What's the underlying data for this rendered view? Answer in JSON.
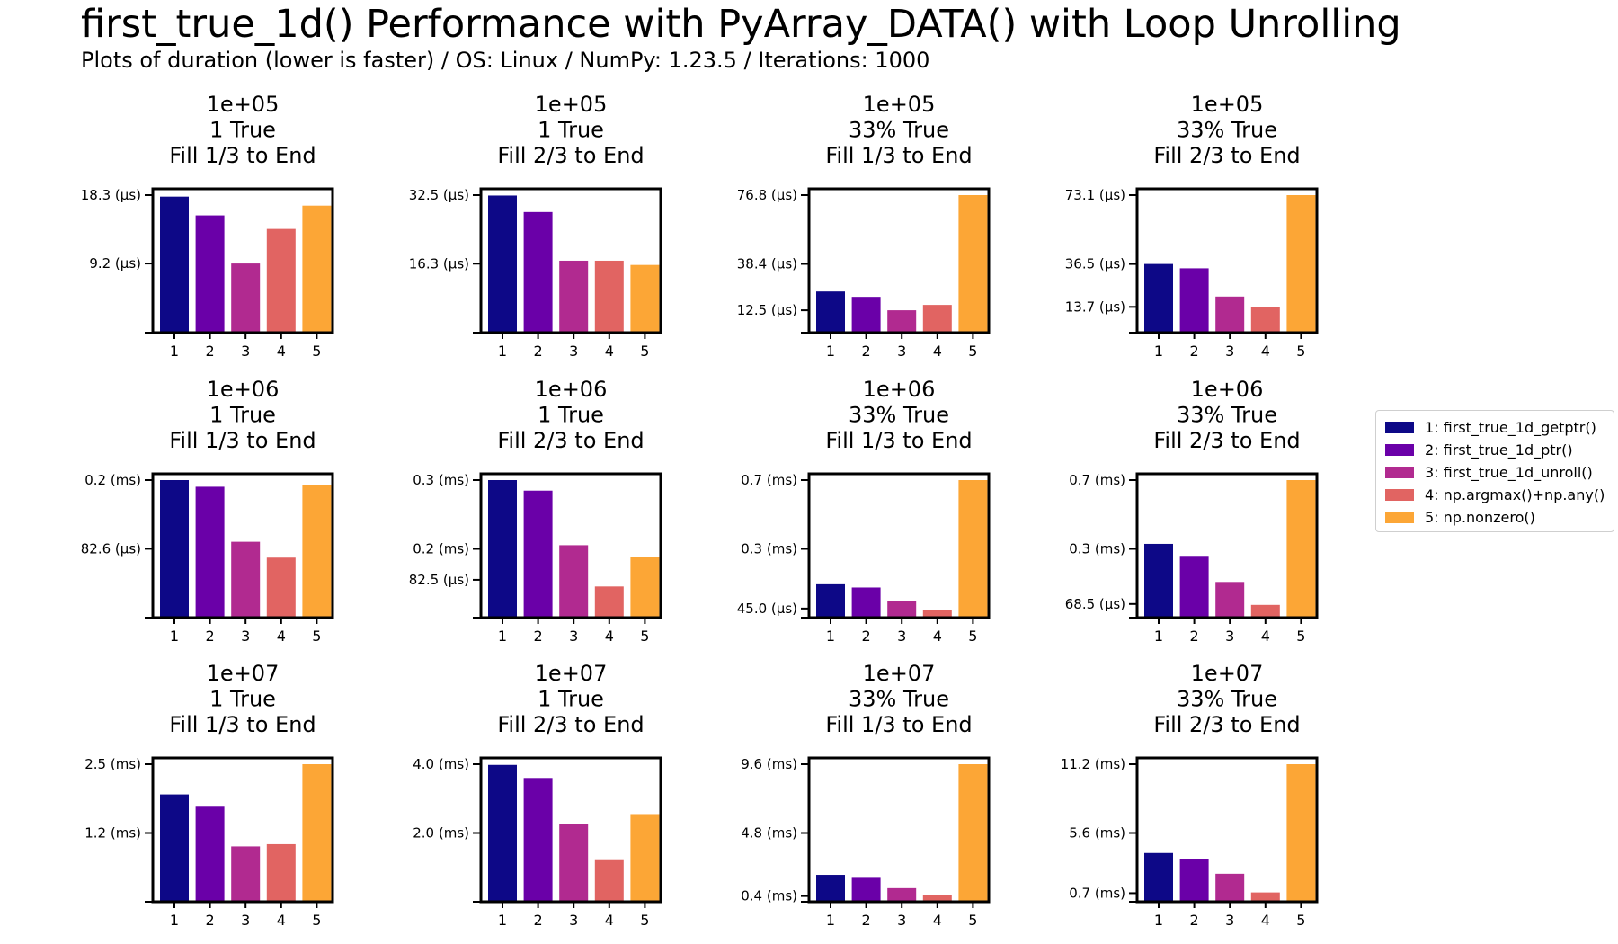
{
  "title": "first_true_1d() Performance with PyArray_DATA() with Loop Unrolling",
  "subtitle": "Plots of duration (lower is faster) / OS: Linux / NumPy: 1.23.5 / Iterations: 1000",
  "colors": [
    "#0d0887",
    "#6a00a8",
    "#b12a90",
    "#e16462",
    "#fca636"
  ],
  "legend": [
    "1: first_true_1d_getptr()",
    "2: first_true_1d_ptr()",
    "3: first_true_1d_unroll()",
    "4: np.argmax()+np.any()",
    "5: np.nonzero()"
  ],
  "chart_data": [
    {
      "type": "bar",
      "title": [
        "1e+05",
        "1 True",
        "Fill 1/3 to End"
      ],
      "categories": [
        "1",
        "2",
        "3",
        "4",
        "5"
      ],
      "values": [
        18.1,
        15.6,
        9.2,
        13.8,
        16.9
      ],
      "yticks": [
        {
          "v": 18.3,
          "label": "18.3 (µs)"
        },
        {
          "v": 9.2,
          "label": "9.2 (µs)"
        },
        {
          "v": 0,
          "label": ""
        }
      ],
      "ylim": [
        0,
        18.3
      ]
    },
    {
      "type": "bar",
      "title": [
        "1e+05",
        "1 True",
        "Fill 2/3 to End"
      ],
      "categories": [
        "1",
        "2",
        "3",
        "4",
        "5"
      ],
      "values": [
        32.4,
        28.5,
        17.0,
        17.0,
        16.0
      ],
      "yticks": [
        {
          "v": 32.5,
          "label": "32.5 (µs)"
        },
        {
          "v": 16.3,
          "label": "16.3 (µs)"
        },
        {
          "v": 0,
          "label": ""
        }
      ],
      "ylim": [
        0,
        32.5
      ]
    },
    {
      "type": "bar",
      "title": [
        "1e+05",
        "33% True",
        "Fill 1/3 to End"
      ],
      "categories": [
        "1",
        "2",
        "3",
        "4",
        "5"
      ],
      "values": [
        23.0,
        20.0,
        12.5,
        15.5,
        76.8
      ],
      "yticks": [
        {
          "v": 76.8,
          "label": "76.8 (µs)"
        },
        {
          "v": 38.4,
          "label": "38.4 (µs)"
        },
        {
          "v": 12.5,
          "label": "12.5 (µs)"
        },
        {
          "v": 0,
          "label": ""
        }
      ],
      "ylim": [
        0,
        76.8
      ]
    },
    {
      "type": "bar",
      "title": [
        "1e+05",
        "33% True",
        "Fill 2/3 to End"
      ],
      "categories": [
        "1",
        "2",
        "3",
        "4",
        "5"
      ],
      "values": [
        36.5,
        34.2,
        19.2,
        13.7,
        73.1
      ],
      "yticks": [
        {
          "v": 73.1,
          "label": "73.1 (µs)"
        },
        {
          "v": 36.5,
          "label": "36.5 (µs)"
        },
        {
          "v": 13.7,
          "label": "13.7 (µs)"
        },
        {
          "v": 0,
          "label": ""
        }
      ],
      "ylim": [
        0,
        73.1
      ]
    },
    {
      "type": "bar",
      "title": [
        "1e+06",
        "1 True",
        "Fill 1/3 to End"
      ],
      "categories": [
        "1",
        "2",
        "3",
        "4",
        "5"
      ],
      "values": [
        0.165,
        0.157,
        0.091,
        0.072,
        0.159
      ],
      "yticks": [
        {
          "v": 0.165,
          "label": "0.2 (ms)"
        },
        {
          "v": 0.0826,
          "label": "82.6 (µs)"
        },
        {
          "v": 0,
          "label": ""
        }
      ],
      "ylim": [
        0,
        0.165
      ]
    },
    {
      "type": "bar",
      "title": [
        "1e+06",
        "1 True",
        "Fill 2/3 to End"
      ],
      "categories": [
        "1",
        "2",
        "3",
        "4",
        "5"
      ],
      "values": [
        0.3,
        0.277,
        0.158,
        0.068,
        0.133
      ],
      "yticks": [
        {
          "v": 0.3,
          "label": "0.3 (ms)"
        },
        {
          "v": 0.15,
          "label": "0.2 (ms)"
        },
        {
          "v": 0.0825,
          "label": "82.5 (µs)"
        },
        {
          "v": 0,
          "label": ""
        }
      ],
      "ylim": [
        0,
        0.3
      ]
    },
    {
      "type": "bar",
      "title": [
        "1e+06",
        "33% True",
        "Fill 1/3 to End"
      ],
      "categories": [
        "1",
        "2",
        "3",
        "4",
        "5"
      ],
      "values": [
        0.165,
        0.149,
        0.083,
        0.037,
        0.68
      ],
      "yticks": [
        {
          "v": 0.68,
          "label": "0.7 (ms)"
        },
        {
          "v": 0.34,
          "label": "0.3 (ms)"
        },
        {
          "v": 0.045,
          "label": "45.0 (µs)"
        },
        {
          "v": 0,
          "label": ""
        }
      ],
      "ylim": [
        0,
        0.68
      ]
    },
    {
      "type": "bar",
      "title": [
        "1e+06",
        "33% True",
        "Fill 2/3 to End"
      ],
      "categories": [
        "1",
        "2",
        "3",
        "4",
        "5"
      ],
      "values": [
        0.37,
        0.31,
        0.179,
        0.064,
        0.69
      ],
      "yticks": [
        {
          "v": 0.69,
          "label": "0.7 (ms)"
        },
        {
          "v": 0.345,
          "label": "0.3 (ms)"
        },
        {
          "v": 0.0685,
          "label": "68.5 (µs)"
        },
        {
          "v": 0,
          "label": ""
        }
      ],
      "ylim": [
        0,
        0.69
      ]
    },
    {
      "type": "bar",
      "title": [
        "1e+07",
        "1 True",
        "Fill 1/3 to End"
      ],
      "categories": [
        "1",
        "2",
        "3",
        "4",
        "5"
      ],
      "values": [
        1.92,
        1.7,
        0.99,
        1.03,
        2.46
      ],
      "yticks": [
        {
          "v": 2.46,
          "label": "2.5 (ms)"
        },
        {
          "v": 1.23,
          "label": "1.2 (ms)"
        },
        {
          "v": 0,
          "label": ""
        }
      ],
      "ylim": [
        0,
        2.46
      ]
    },
    {
      "type": "bar",
      "title": [
        "1e+07",
        "1 True",
        "Fill 2/3 to End"
      ],
      "categories": [
        "1",
        "2",
        "3",
        "4",
        "5"
      ],
      "values": [
        3.98,
        3.6,
        2.26,
        1.21,
        2.55
      ],
      "yticks": [
        {
          "v": 4.0,
          "label": "4.0 (ms)"
        },
        {
          "v": 2.0,
          "label": "2.0 (ms)"
        },
        {
          "v": 0,
          "label": ""
        }
      ],
      "ylim": [
        0,
        4.0
      ]
    },
    {
      "type": "bar",
      "title": [
        "1e+07",
        "33% True",
        "Fill 1/3 to End"
      ],
      "categories": [
        "1",
        "2",
        "3",
        "4",
        "5"
      ],
      "values": [
        1.88,
        1.67,
        0.95,
        0.45,
        9.6
      ],
      "yticks": [
        {
          "v": 9.6,
          "label": "9.6 (ms)"
        },
        {
          "v": 4.8,
          "label": "4.8 (ms)"
        },
        {
          "v": 0.4,
          "label": "0.4 (ms)"
        },
        {
          "v": 0,
          "label": ""
        }
      ],
      "ylim": [
        0,
        9.6
      ]
    },
    {
      "type": "bar",
      "title": [
        "1e+07",
        "33% True",
        "Fill 2/3 to End"
      ],
      "categories": [
        "1",
        "2",
        "3",
        "4",
        "5"
      ],
      "values": [
        3.97,
        3.5,
        2.28,
        0.76,
        11.2
      ],
      "yticks": [
        {
          "v": 11.2,
          "label": "11.2 (ms)"
        },
        {
          "v": 5.6,
          "label": "5.6 (ms)"
        },
        {
          "v": 0.7,
          "label": "0.7 (ms)"
        },
        {
          "v": 0,
          "label": ""
        }
      ],
      "ylim": [
        0,
        11.2
      ]
    }
  ]
}
